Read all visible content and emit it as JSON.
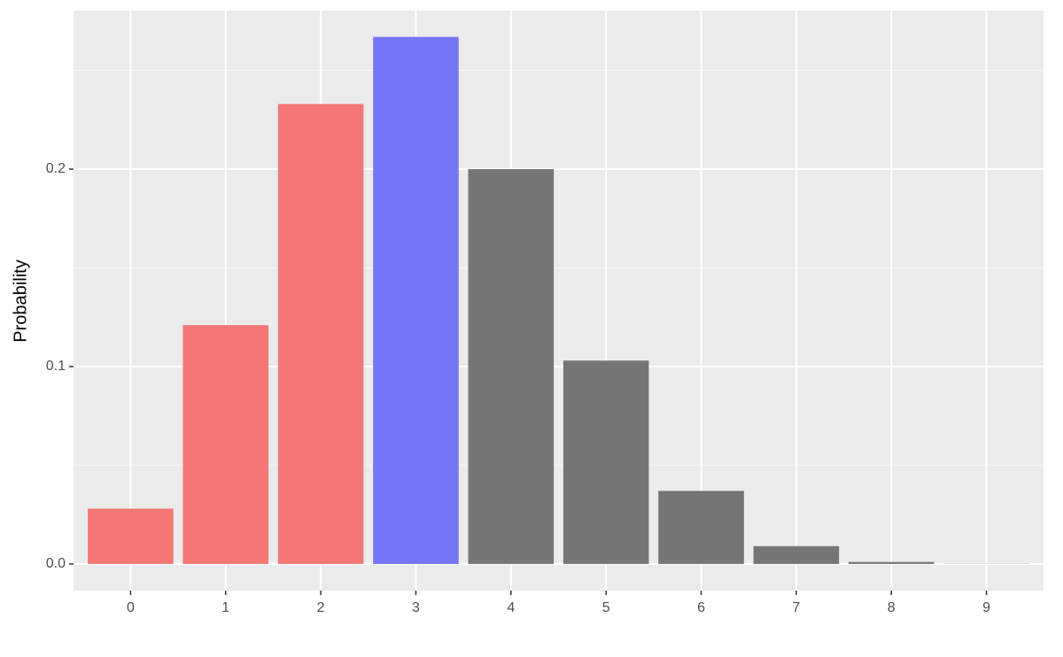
{
  "chart_data": {
    "type": "bar",
    "y_label": "Probability",
    "categories": [
      "0",
      "1",
      "2",
      "3",
      "4",
      "5",
      "6",
      "7",
      "8",
      "9"
    ],
    "values": [
      0.028,
      0.121,
      0.233,
      0.267,
      0.2,
      0.103,
      0.037,
      0.009,
      0.001,
      0.0001
    ],
    "colors": [
      "#f47775",
      "#f47775",
      "#f47775",
      "#7575f5",
      "#757575",
      "#757575",
      "#757575",
      "#757575",
      "#757575",
      "#757575"
    ],
    "ylim": [
      -0.0135,
      0.2803
    ],
    "yticks": [
      {
        "value": 0,
        "label": "0.0"
      },
      {
        "value": 0.1,
        "label": "0.1"
      },
      {
        "value": 0.2,
        "label": "0.2"
      }
    ],
    "minor_yticks": [
      0.05,
      0.15,
      0.25
    ],
    "grid": true
  }
}
